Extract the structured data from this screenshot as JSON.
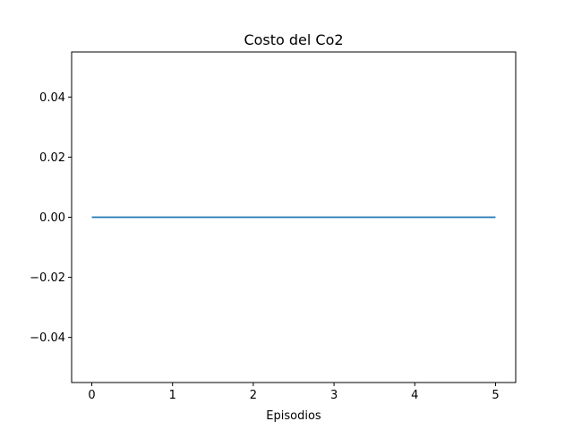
{
  "chart_data": {
    "type": "line",
    "title": "Costo del Co2",
    "xlabel": "Episodios",
    "ylabel": "",
    "xlim": [
      -0.25,
      5.25
    ],
    "ylim": [
      -0.055,
      0.055
    ],
    "x_ticks": [
      0,
      1,
      2,
      3,
      4,
      5
    ],
    "x_tick_labels": [
      "0",
      "1",
      "2",
      "3",
      "4",
      "5"
    ],
    "y_ticks": [
      0.04,
      0.02,
      0.0,
      -0.02,
      -0.04
    ],
    "y_tick_labels": [
      "0.04",
      "0.02",
      "0.00",
      "−0.02",
      "−0.04"
    ],
    "grid": false,
    "series": [
      {
        "x": [
          0,
          1,
          2,
          3,
          4,
          5
        ],
        "y": [
          0,
          0,
          0,
          0,
          0,
          0
        ],
        "color": "#1f77b4"
      }
    ]
  }
}
